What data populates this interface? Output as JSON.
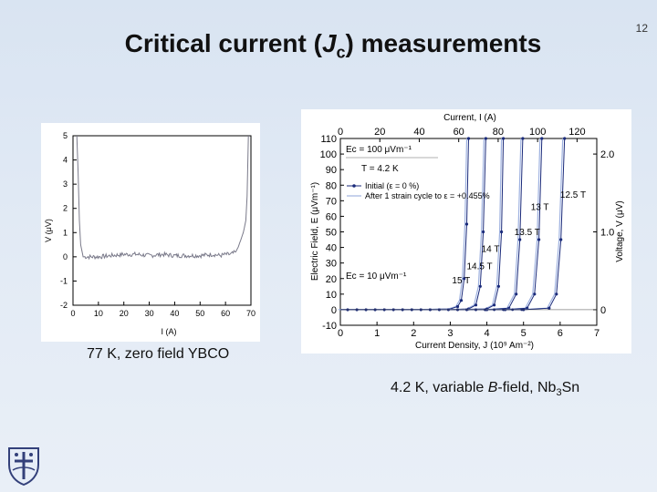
{
  "slide": {
    "number": "12",
    "title_prefix": "Critical current (",
    "title_var": "J",
    "title_sub": "c",
    "title_suffix": ") measurements"
  },
  "captions": {
    "left": "77 K, zero field YBCO",
    "right_prefix": "4.2 K, variable ",
    "right_var": "B",
    "right_mid": "-field, Nb",
    "right_sub": "3",
    "right_suffix": "Sn"
  },
  "chart_data": [
    {
      "type": "line",
      "xlabel": "I (A)",
      "ylabel": "V (μV)",
      "xlim": [
        0,
        70
      ],
      "ylim": [
        -2,
        5
      ],
      "xticks": [
        "0",
        "10",
        "20",
        "30",
        "40",
        "50",
        "60",
        "70"
      ],
      "yticks": [
        "-2",
        "-1",
        "0",
        "1",
        "2",
        "3",
        "4",
        "5"
      ],
      "series": [
        {
          "x": [
            1.5,
            2.0,
            2.5,
            3.0,
            4.0,
            6,
            10,
            15,
            20,
            25,
            30,
            35,
            40,
            45,
            50,
            55,
            58,
            60,
            62,
            63,
            64,
            65,
            66,
            67,
            68,
            68.5,
            69
          ],
          "y": [
            5.0,
            3.5,
            1.5,
            0.5,
            0.0,
            0.0,
            0.0,
            0.05,
            0.1,
            0.1,
            0.05,
            0.1,
            0.05,
            0.05,
            0.05,
            0.1,
            0.05,
            0.1,
            0.1,
            0.15,
            0.2,
            0.4,
            0.7,
            1.0,
            1.5,
            2.5,
            5.0
          ]
        }
      ],
      "grid": false
    },
    {
      "type": "line",
      "xlabel": "Current Density, J (10⁹ Am⁻²)",
      "x2label": "Current, I (A)",
      "ylabel": "Electric Field, E (μVm⁻¹)",
      "y2label": "Voltage, V (μV)",
      "xlim": [
        0,
        7
      ],
      "ylim": [
        -10,
        110
      ],
      "x2lim": [
        0,
        130
      ],
      "y2lim": [
        0,
        2.2
      ],
      "xticks": [
        "0",
        "1",
        "2",
        "3",
        "4",
        "5",
        "6",
        "7"
      ],
      "yticks": [
        "-10",
        "0",
        "10",
        "20",
        "30",
        "40",
        "50",
        "60",
        "70",
        "80",
        "90",
        "100",
        "110"
      ],
      "x2ticks": [
        "0",
        "20",
        "40",
        "60",
        "80",
        "100",
        "120"
      ],
      "y2ticks": [
        "0",
        "1.0",
        "2.0"
      ],
      "annotations": [
        "Ec = 100 μVm⁻¹",
        "T = 4.2 K",
        "Ec = 10 μVm⁻¹"
      ],
      "legend": [
        "Initial (ε = 0 %)",
        "After 1 strain cycle to ε = +0.455%"
      ],
      "legend_placement": "top-left",
      "series": [
        {
          "name": "15 T",
          "x": [
            0,
            1,
            2,
            3.0,
            3.2,
            3.3,
            3.38,
            3.45,
            3.5
          ],
          "y": [
            0,
            0,
            0,
            0.5,
            2,
            6,
            20,
            55,
            110
          ]
        },
        {
          "name": "14.5 T",
          "x": [
            0,
            1,
            2,
            3,
            3.5,
            3.7,
            3.82,
            3.9,
            3.97
          ],
          "y": [
            0,
            0,
            0,
            0,
            0.5,
            3,
            15,
            50,
            110
          ]
        },
        {
          "name": "14 T",
          "x": [
            0,
            1,
            2,
            3,
            4.0,
            4.2,
            4.32,
            4.4,
            4.45
          ],
          "y": [
            0,
            0,
            0,
            0,
            0.5,
            3,
            15,
            50,
            110
          ]
        },
        {
          "name": "13.5 T",
          "x": [
            0,
            1,
            2,
            3,
            4.0,
            4.6,
            4.8,
            4.9,
            4.98
          ],
          "y": [
            0,
            0,
            0,
            0,
            0,
            1,
            10,
            45,
            110
          ]
        },
        {
          "name": "13 T",
          "x": [
            0,
            1,
            2,
            3,
            4.5,
            5.1,
            5.3,
            5.42,
            5.5
          ],
          "y": [
            0,
            0,
            0,
            0,
            0,
            1,
            10,
            45,
            110
          ]
        },
        {
          "name": "12.5 T",
          "x": [
            0,
            1,
            2,
            3,
            5.0,
            5.7,
            5.9,
            6.02,
            6.12
          ],
          "y": [
            0,
            0,
            0,
            0,
            0,
            1,
            10,
            45,
            110
          ]
        }
      ],
      "grid": false
    }
  ]
}
